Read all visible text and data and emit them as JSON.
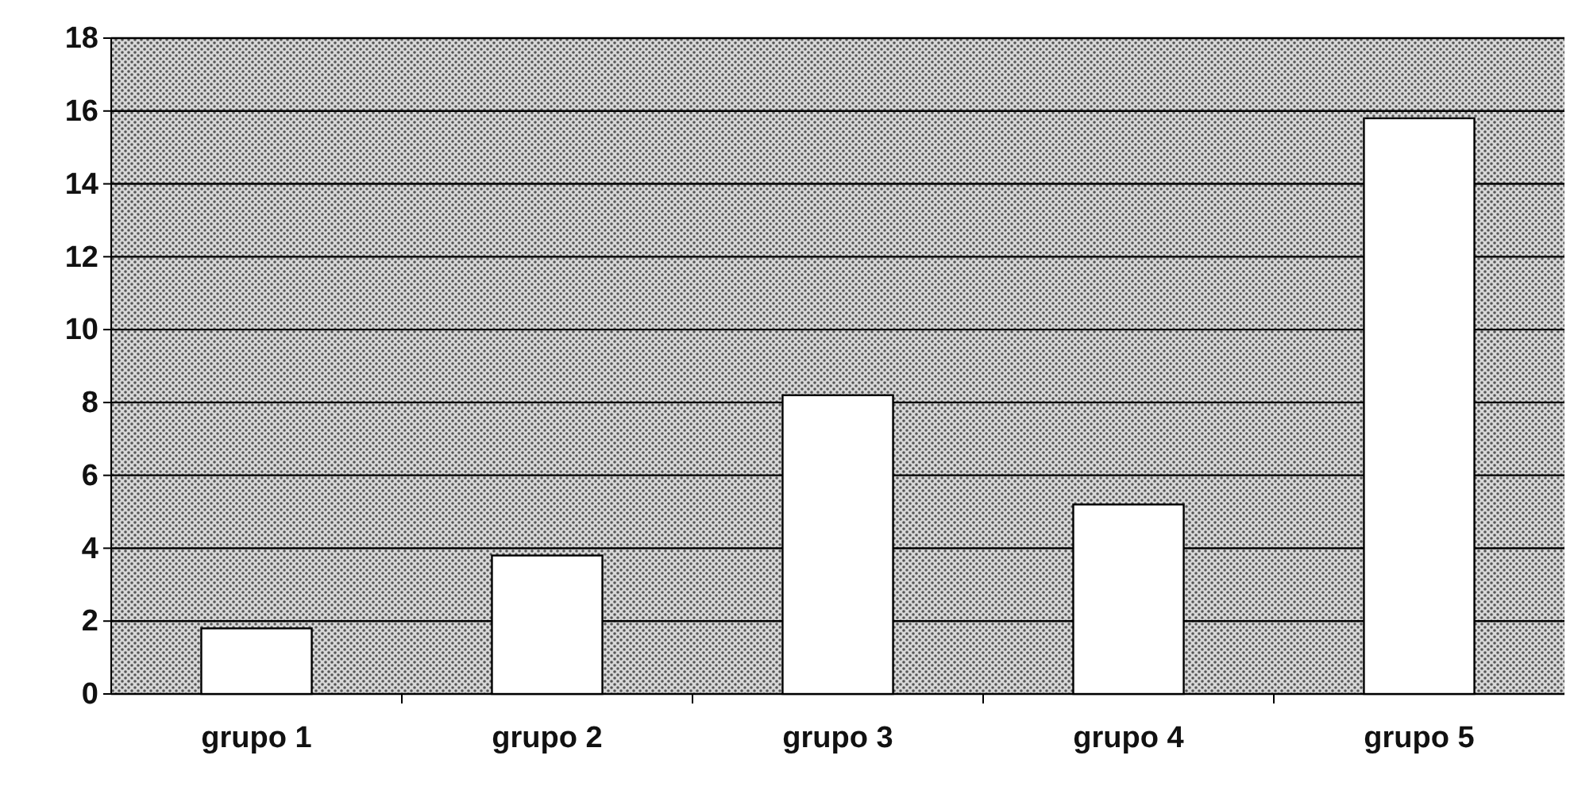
{
  "chart_data": {
    "type": "bar",
    "categories": [
      "grupo 1",
      "grupo 2",
      "grupo 3",
      "grupo 4",
      "grupo 5"
    ],
    "values": [
      1.8,
      3.8,
      8.2,
      5.2,
      15.8
    ],
    "color": "#ffffff",
    "ylim": [
      0,
      18
    ],
    "yticks": [
      0,
      2,
      4,
      6,
      8,
      10,
      12,
      14,
      16,
      18
    ],
    "grid": "y"
  }
}
